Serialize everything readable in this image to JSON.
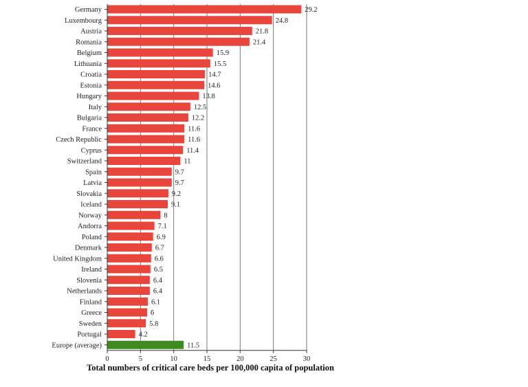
{
  "chart_data": {
    "type": "bar",
    "orientation": "horizontal",
    "categories": [
      "Germany",
      "Luxembourg",
      "Austria",
      "Romania",
      "Belgium",
      "Lithuania",
      "Croatia",
      "Estonia",
      "Hungary",
      "Italy",
      "Bulgaria",
      "France",
      "Czech Republic",
      "Cyprus",
      "Switzerland",
      "Spain",
      "Latvia",
      "Slovakia",
      "Iceland",
      "Norway",
      "Andorra",
      "Poland",
      "Denmark",
      "United Kingdom",
      "Ireland",
      "Slovenia",
      "Netherlands",
      "Finland",
      "Greece",
      "Sweden",
      "Portugal",
      "Europe (average)"
    ],
    "values": [
      29.2,
      24.8,
      21.8,
      21.4,
      15.9,
      15.5,
      14.7,
      14.6,
      13.8,
      12.5,
      12.2,
      11.6,
      11.6,
      11.4,
      11,
      9.7,
      9.7,
      9.2,
      9.1,
      8,
      7.1,
      6.9,
      6.7,
      6.6,
      6.5,
      6.4,
      6.4,
      6.1,
      6,
      5.8,
      4.2,
      11.5
    ],
    "value_labels": [
      "29.2",
      "24.8",
      "21.8",
      "21.4",
      "15.9",
      "15.5",
      "14.7",
      "14.6",
      "13.8",
      "12.5",
      "12.2",
      "11.6",
      "11.6",
      "11.4",
      "11",
      "9.7",
      "9.7",
      "9.2",
      "9.1",
      "8",
      "7.1",
      "6.9",
      "6.7",
      "6.6",
      "6.5",
      "6.4",
      "6.4",
      "6.1",
      "6",
      "5.8",
      "4.2",
      "11.5"
    ],
    "xlim": [
      0,
      30
    ],
    "xticks": [
      "0",
      "5",
      "10",
      "15",
      "20",
      "25",
      "30"
    ],
    "xlabel": "Total numbers of critical care beds per 100,000 capita of population",
    "grid": true,
    "colors": {
      "bar": "#e8453c",
      "highlight": "#3f8a1e",
      "grid": "#777777"
    },
    "highlight_category": "Europe (average)"
  }
}
